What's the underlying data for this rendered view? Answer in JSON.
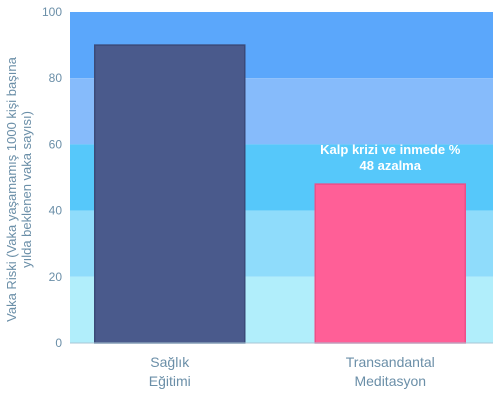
{
  "chart_data": {
    "type": "bar",
    "categories": [
      [
        "Sağlık",
        "Eğitimi"
      ],
      [
        "Transandantal",
        "Meditasyon"
      ]
    ],
    "values": [
      90,
      48
    ],
    "bar_colors": [
      "#4a5a8c",
      "#ff5f97"
    ],
    "ylabel": [
      "Vaka Riski (Vaka yaşamamış 1000 kişi başına",
      "yılda beklenen vaka sayısı)"
    ],
    "ylim": [
      0,
      100
    ],
    "yticks": [
      0,
      20,
      40,
      60,
      80,
      100
    ],
    "annotation": [
      "Kalp krizi ve inmede %",
      "48 azalma"
    ],
    "background_bands": [
      {
        "from": 80,
        "to": 100,
        "color": "#5ba7fb"
      },
      {
        "from": 60,
        "to": 80,
        "color": "#86bbfb"
      },
      {
        "from": 40,
        "to": 60,
        "color": "#56c8fa"
      },
      {
        "from": 20,
        "to": 40,
        "color": "#8fdcfb"
      },
      {
        "from": 0,
        "to": 20,
        "color": "#b1eefb"
      }
    ],
    "grid": false,
    "legend": "none"
  }
}
